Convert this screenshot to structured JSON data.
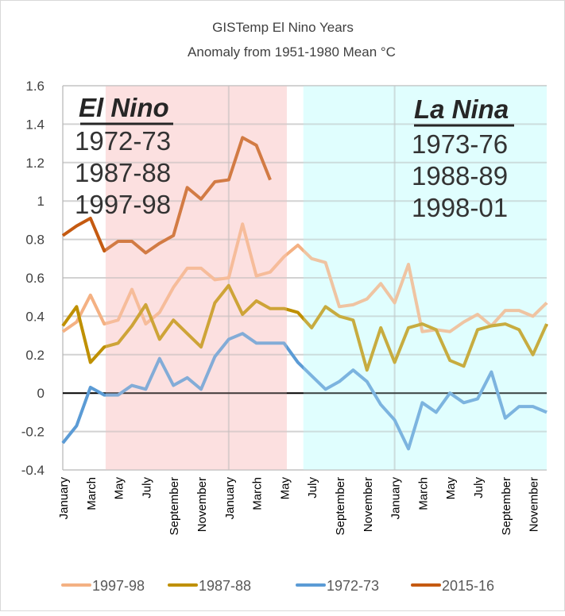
{
  "chart_data": {
    "type": "line",
    "title": "GISTemp El Nino Years",
    "subtitle": "Anomaly from 1951-1980 Mean °C",
    "xlabel": "",
    "ylabel": "",
    "ylim": [
      -0.4,
      1.6
    ],
    "yticks": [
      "-0.4",
      "-0.2",
      "0",
      "0.2",
      "0.4",
      "0.6",
      "0.8",
      "1",
      "1.2",
      "1.4",
      "1.6"
    ],
    "x_months": 36,
    "x_tick_labels": [
      "January",
      "March",
      "May",
      "July",
      "September",
      "November",
      "January",
      "March",
      "May",
      "July",
      "September",
      "November",
      "January",
      "March",
      "May",
      "July",
      "September",
      "November"
    ],
    "grid": true,
    "legend_position": "bottom",
    "series": [
      {
        "name": "1997-98",
        "color": "#f4b183",
        "values": [
          0.32,
          0.37,
          0.51,
          0.36,
          0.38,
          0.54,
          0.36,
          0.42,
          0.55,
          0.65,
          0.65,
          0.59,
          0.6,
          0.88,
          0.61,
          0.63,
          0.71,
          0.77,
          0.7,
          0.68,
          0.45,
          0.46,
          0.49,
          0.57,
          0.47,
          0.67,
          0.32,
          0.33,
          0.32,
          0.37,
          0.41,
          0.35,
          0.43,
          0.43,
          0.4,
          0.47
        ]
      },
      {
        "name": "1987-88",
        "color": "#bf9000",
        "values": [
          0.35,
          0.45,
          0.16,
          0.24,
          0.26,
          0.35,
          0.46,
          0.28,
          0.38,
          0.31,
          0.24,
          0.47,
          0.56,
          0.41,
          0.48,
          0.44,
          0.44,
          0.42,
          0.34,
          0.45,
          0.4,
          0.38,
          0.12,
          0.34,
          0.16,
          0.34,
          0.36,
          0.33,
          0.17,
          0.14,
          0.33,
          0.35,
          0.36,
          0.33,
          0.2,
          0.36
        ]
      },
      {
        "name": "1972-73",
        "color": "#5b9bd5",
        "values": [
          -0.26,
          -0.17,
          0.03,
          -0.01,
          -0.01,
          0.04,
          0.02,
          0.18,
          0.04,
          0.08,
          0.02,
          0.19,
          0.28,
          0.31,
          0.26,
          0.26,
          0.26,
          0.16,
          0.09,
          0.02,
          0.06,
          0.12,
          0.06,
          -0.06,
          -0.14,
          -0.29,
          -0.05,
          -0.1,
          0.0,
          -0.05,
          -0.03,
          0.11,
          -0.13,
          -0.07,
          -0.07,
          -0.1
        ]
      },
      {
        "name": "2015-16",
        "color": "#c55a11",
        "values": [
          0.82,
          0.87,
          0.91,
          0.74,
          0.79,
          0.79,
          0.73,
          0.78,
          0.82,
          1.07,
          1.01,
          1.1,
          1.11,
          1.33,
          1.29,
          1.11
        ]
      }
    ],
    "shaded_regions": [
      {
        "label": "El Nino",
        "color": "#fde0e0",
        "from_month": 3.1,
        "to_month": 16.2
      },
      {
        "label": "La Nina",
        "color": "#e0fefe",
        "from_month": 17.4,
        "to_month": 35
      }
    ],
    "annotations": {
      "el_nino": {
        "heading": "El Nino",
        "years": [
          "1972-73",
          "1987-88",
          "1997-98"
        ]
      },
      "la_nina": {
        "heading": "La Nina",
        "years": [
          "1973-76",
          "1988-89",
          "1998-01"
        ]
      }
    }
  }
}
